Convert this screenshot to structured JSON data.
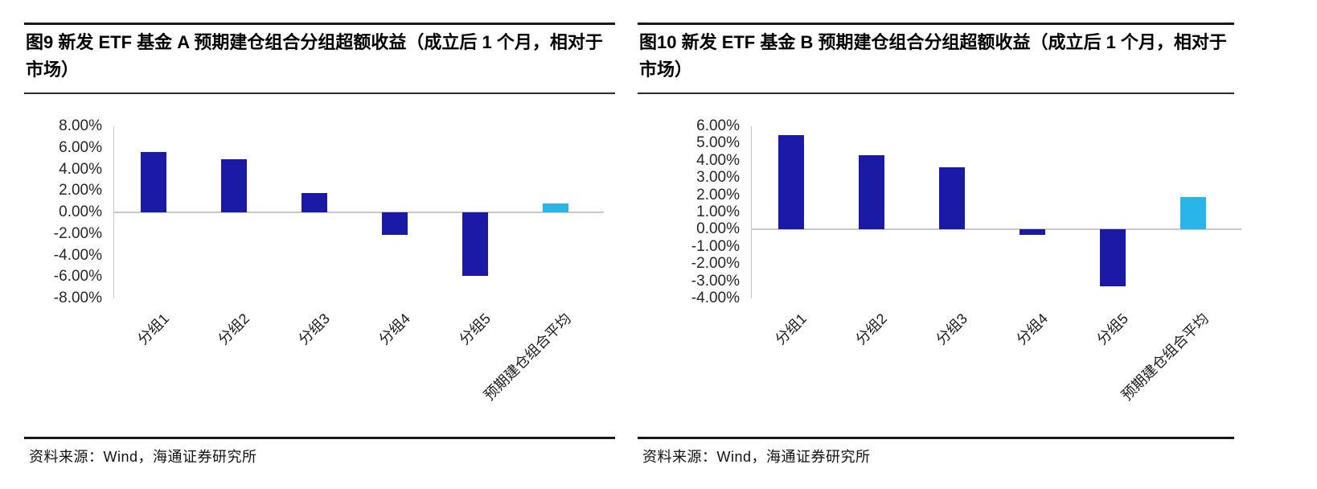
{
  "figures": [
    {
      "title": "图9  新发 ETF 基金 A 预期建仓组合分组超额收益（成立后 1 个月，相对于市场）",
      "source": "资料来源：Wind，海通证券研究所"
    },
    {
      "title": "图10 新发 ETF 基金 B 预期建仓组合分组超额收益（成立后 1 个月，相对于市场）",
      "source": "资料来源：Wind，海通证券研究所"
    }
  ],
  "colors": {
    "bar_dark_blue": "#1b1aa7",
    "bar_light_blue": "#29b5e8",
    "axis_gray": "#c8c8c8",
    "rule_black": "#1a1a1a"
  },
  "chart_data": [
    {
      "type": "bar",
      "title": "新发 ETF 基金 A 预期建仓组合分组超额收益（成立后 1 个月，相对于市场）",
      "categories": [
        "分组1",
        "分组2",
        "分组3",
        "分组4",
        "分组5",
        "预期建仓组合平均"
      ],
      "values": [
        5.6,
        4.9,
        1.8,
        -2.1,
        -5.9,
        0.8
      ],
      "unit": "%",
      "bar_colors": [
        "#1b1aa7",
        "#1b1aa7",
        "#1b1aa7",
        "#1b1aa7",
        "#1b1aa7",
        "#29b5e8"
      ],
      "ylim": [
        -8,
        8
      ],
      "ytick_step": 2,
      "ytick_labels": [
        "8.00%",
        "6.00%",
        "4.00%",
        "2.00%",
        "0.00%",
        "-2.00%",
        "-4.00%",
        "-6.00%",
        "-8.00%"
      ],
      "xlabel": "",
      "ylabel": "",
      "legend": "none",
      "grid": false
    },
    {
      "type": "bar",
      "title": "新发 ETF 基金 B 预期建仓组合分组超额收益（成立后 1 个月，相对于市场）",
      "categories": [
        "分组1",
        "分组2",
        "分组3",
        "分组4",
        "分组5",
        "预期建仓组合平均"
      ],
      "values": [
        5.5,
        4.3,
        3.6,
        -0.3,
        -3.3,
        1.9
      ],
      "unit": "%",
      "bar_colors": [
        "#1b1aa7",
        "#1b1aa7",
        "#1b1aa7",
        "#1b1aa7",
        "#1b1aa7",
        "#29b5e8"
      ],
      "ylim": [
        -4,
        6
      ],
      "ytick_step": 1,
      "ytick_labels": [
        "6.00%",
        "5.00%",
        "4.00%",
        "3.00%",
        "2.00%",
        "1.00%",
        "0.00%",
        "-1.00%",
        "-2.00%",
        "-3.00%",
        "-4.00%"
      ],
      "xlabel": "",
      "ylabel": "",
      "legend": "none",
      "grid": false
    }
  ]
}
